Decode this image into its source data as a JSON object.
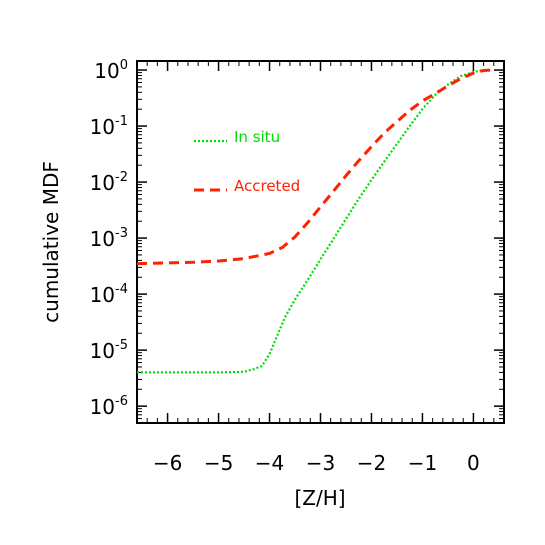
{
  "chart_data": {
    "type": "line",
    "title": "",
    "xlabel": "[Z/H]",
    "ylabel": "cumulative MDF",
    "xlim": [
      -6.6,
      0.6
    ],
    "ylim": [
      5e-07,
      1.45
    ],
    "yscale": "log",
    "x_ticks": [
      -6,
      -5,
      -4,
      -3,
      -2,
      -1,
      0
    ],
    "x_tick_labels": [
      "−6",
      "−5",
      "−4",
      "−3",
      "−2",
      "−1",
      "0"
    ],
    "y_ticks": [
      1e-06,
      1e-05,
      0.0001,
      0.001,
      0.01,
      0.1,
      1
    ],
    "y_tick_labels": [
      {
        "base": "10",
        "exp": "-6"
      },
      {
        "base": "10",
        "exp": "-5"
      },
      {
        "base": "10",
        "exp": "-4"
      },
      {
        "base": "10",
        "exp": "-3"
      },
      {
        "base": "10",
        "exp": "-2"
      },
      {
        "base": "10",
        "exp": "-1"
      },
      {
        "base": "10",
        "exp": "0"
      }
    ],
    "grid": false,
    "legend_position": "top-left",
    "series": [
      {
        "name": "In situ",
        "color": "#00dd00",
        "style": "dotted",
        "points": [
          [
            -6.6,
            4e-06
          ],
          [
            -5.0,
            4e-06
          ],
          [
            -4.5,
            4.1e-06
          ],
          [
            -4.3,
            4.6e-06
          ],
          [
            -4.15,
            5.2e-06
          ],
          [
            -4.0,
            8.5e-06
          ],
          [
            -3.85,
            1.8e-05
          ],
          [
            -3.7,
            3.8e-05
          ],
          [
            -3.5,
            8e-05
          ],
          [
            -3.25,
            0.00018
          ],
          [
            -3.0,
            0.00042
          ],
          [
            -2.75,
            0.00095
          ],
          [
            -2.5,
            0.0022
          ],
          [
            -2.25,
            0.005
          ],
          [
            -2.0,
            0.011
          ],
          [
            -1.75,
            0.023
          ],
          [
            -1.5,
            0.048
          ],
          [
            -1.25,
            0.1
          ],
          [
            -1.0,
            0.2
          ],
          [
            -0.75,
            0.36
          ],
          [
            -0.5,
            0.55
          ],
          [
            -0.25,
            0.78
          ],
          [
            0.0,
            0.92
          ],
          [
            0.15,
            0.98
          ],
          [
            0.35,
            1.0
          ]
        ]
      },
      {
        "name": "Accreted",
        "color": "#ff2200",
        "style": "dashed",
        "points": [
          [
            -6.6,
            0.00035
          ],
          [
            -6.0,
            0.00036
          ],
          [
            -5.5,
            0.00037
          ],
          [
            -5.0,
            0.00039
          ],
          [
            -4.5,
            0.00043
          ],
          [
            -4.0,
            0.00053
          ],
          [
            -3.75,
            0.00068
          ],
          [
            -3.5,
            0.00105
          ],
          [
            -3.25,
            0.0019
          ],
          [
            -3.0,
            0.0036
          ],
          [
            -2.75,
            0.0068
          ],
          [
            -2.5,
            0.013
          ],
          [
            -2.25,
            0.024
          ],
          [
            -2.0,
            0.043
          ],
          [
            -1.75,
            0.075
          ],
          [
            -1.5,
            0.12
          ],
          [
            -1.25,
            0.19
          ],
          [
            -1.0,
            0.28
          ],
          [
            -0.75,
            0.38
          ],
          [
            -0.5,
            0.52
          ],
          [
            -0.25,
            0.7
          ],
          [
            0.0,
            0.88
          ],
          [
            0.2,
            0.98
          ],
          [
            0.35,
            1.0
          ]
        ]
      }
    ]
  }
}
